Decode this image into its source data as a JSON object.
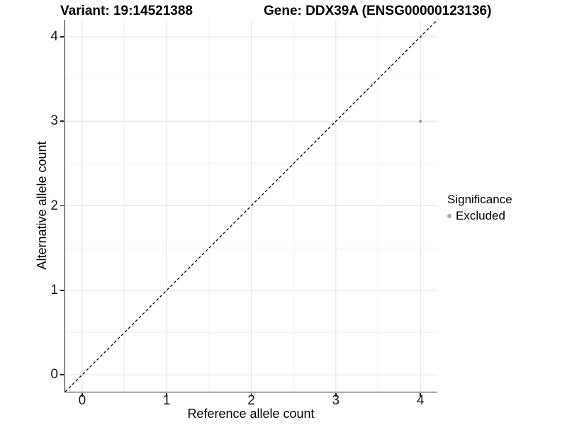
{
  "chart_data": {
    "type": "scatter",
    "titles": {
      "variant": "Variant: 19:14521388",
      "gene": "Gene: DDX39A (ENSG00000123136)"
    },
    "xlabel": "Reference allele count",
    "ylabel": "Alternative allele count",
    "xlim": [
      -0.2,
      4.2
    ],
    "ylim": [
      -0.2,
      4.2
    ],
    "x_ticks": [
      0,
      1,
      2,
      3,
      4
    ],
    "y_ticks": [
      0,
      1,
      2,
      3,
      4
    ],
    "x_minor": [
      0.5,
      1.5,
      2.5,
      3.5
    ],
    "y_minor": [
      0.5,
      1.5,
      2.5,
      3.5
    ],
    "grid": {
      "on": true,
      "major_color": "#e4e4e4",
      "minor_color": "#f1f1f1"
    },
    "axis_color": "#1a1a1a",
    "reference_line": {
      "x1": -0.2,
      "y1": -0.2,
      "x2": 4.2,
      "y2": 4.2,
      "style": "dashed",
      "color": "#000000"
    },
    "series": [
      {
        "name": "Excluded",
        "color": "#a7a7a7",
        "point_radius": 2.4,
        "points": [
          {
            "x": 4,
            "y": 3
          }
        ]
      }
    ],
    "legend": {
      "title": "Significance",
      "position": "right",
      "entries": [
        {
          "label": "Excluded",
          "color": "#a7a7a7"
        }
      ]
    }
  }
}
